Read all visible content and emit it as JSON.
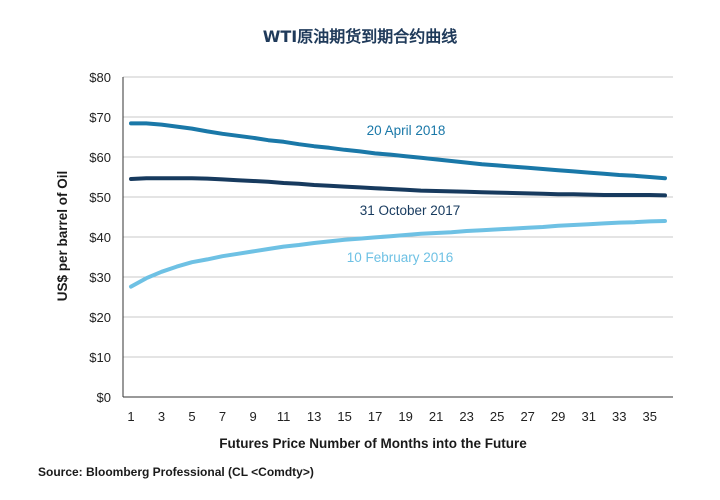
{
  "chart_data": {
    "type": "line",
    "title": "WTI原油期货到期合约曲线",
    "xlabel": "Futures Price Number of Months into the Future",
    "ylabel": "US$ per barrel of Oil",
    "source": "Source: Bloomberg Professional (CL <Comdty>)",
    "x": [
      1,
      2,
      3,
      4,
      5,
      6,
      7,
      8,
      9,
      10,
      11,
      12,
      13,
      14,
      15,
      16,
      17,
      18,
      19,
      20,
      21,
      22,
      23,
      24,
      25,
      26,
      27,
      28,
      29,
      30,
      31,
      32,
      33,
      34,
      35,
      36
    ],
    "x_ticks": [
      1,
      3,
      5,
      7,
      9,
      11,
      13,
      15,
      17,
      19,
      21,
      23,
      25,
      27,
      29,
      31,
      33,
      35
    ],
    "xlim": [
      1,
      36
    ],
    "ylim": [
      0,
      80
    ],
    "y_ticks": [
      0,
      10,
      20,
      30,
      40,
      50,
      60,
      70,
      80
    ],
    "y_tick_labels": [
      "$0",
      "$10",
      "$20",
      "$30",
      "$40",
      "$50",
      "$60",
      "$70",
      "$80"
    ],
    "grid": true,
    "series": [
      {
        "name": "20 April 2018",
        "color": "#1a78a8",
        "values": [
          68.4,
          68.4,
          68.1,
          67.6,
          67.1,
          66.4,
          65.8,
          65.3,
          64.8,
          64.2,
          63.8,
          63.2,
          62.7,
          62.3,
          61.8,
          61.4,
          60.9,
          60.6,
          60.2,
          59.8,
          59.4,
          59.0,
          58.6,
          58.2,
          57.9,
          57.6,
          57.3,
          57.0,
          56.7,
          56.4,
          56.1,
          55.8,
          55.5,
          55.3,
          55.0,
          54.7
        ]
      },
      {
        "name": "31 October 2017",
        "color": "#173a5e",
        "values": [
          54.5,
          54.7,
          54.7,
          54.7,
          54.7,
          54.6,
          54.4,
          54.2,
          54.0,
          53.8,
          53.5,
          53.3,
          53.0,
          52.8,
          52.6,
          52.4,
          52.2,
          52.0,
          51.8,
          51.6,
          51.5,
          51.4,
          51.3,
          51.2,
          51.1,
          51.0,
          50.9,
          50.8,
          50.7,
          50.7,
          50.6,
          50.5,
          50.5,
          50.5,
          50.5,
          50.4
        ]
      },
      {
        "name": "10 February 2016",
        "color": "#6ec1e4",
        "values": [
          27.6,
          29.7,
          31.3,
          32.6,
          33.7,
          34.4,
          35.2,
          35.8,
          36.4,
          37.0,
          37.6,
          38.0,
          38.5,
          38.9,
          39.3,
          39.6,
          39.9,
          40.2,
          40.5,
          40.8,
          41.0,
          41.2,
          41.5,
          41.7,
          41.9,
          42.1,
          42.3,
          42.5,
          42.8,
          43.0,
          43.2,
          43.4,
          43.6,
          43.7,
          43.9,
          44.0
        ]
      }
    ]
  }
}
